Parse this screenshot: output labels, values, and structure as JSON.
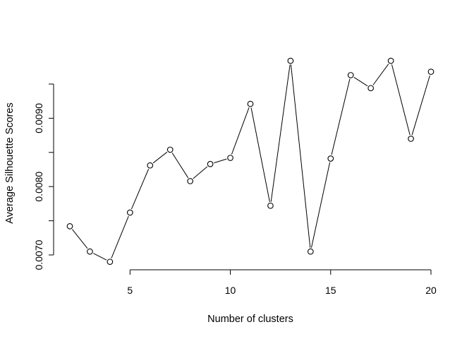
{
  "chart_data": {
    "type": "line",
    "title": "",
    "xlabel": "Number of clusters",
    "ylabel": "Average Silhouette Scores",
    "xlim": [
      2,
      20
    ],
    "ylim": [
      0.0069,
      0.00985
    ],
    "x_ticks": [
      5,
      10,
      15,
      20
    ],
    "x_tick_labels": [
      "5",
      "10",
      "15",
      "20"
    ],
    "y_ticks": [
      0.007,
      0.0075,
      0.008,
      0.0085,
      0.009,
      0.0095
    ],
    "y_tick_labels": [
      "0.0070",
      "",
      "0.0080",
      "",
      "0.0090",
      ""
    ],
    "grid": false,
    "legend": "none",
    "marker": "open-circle",
    "line_color": "#000000",
    "series": [
      {
        "x": [
          2,
          3,
          4,
          5,
          6,
          7,
          8,
          9,
          10,
          11,
          12,
          13,
          14,
          15,
          16,
          17,
          18,
          19,
          20
        ],
        "values": [
          0.00742,
          0.00705,
          0.0069,
          0.00762,
          0.00831,
          0.00854,
          0.00808,
          0.00833,
          0.00842,
          0.00921,
          0.00772,
          0.00984,
          0.00705,
          0.00841,
          0.00963,
          0.00944,
          0.00984,
          0.0087,
          0.00968
        ]
      }
    ]
  }
}
